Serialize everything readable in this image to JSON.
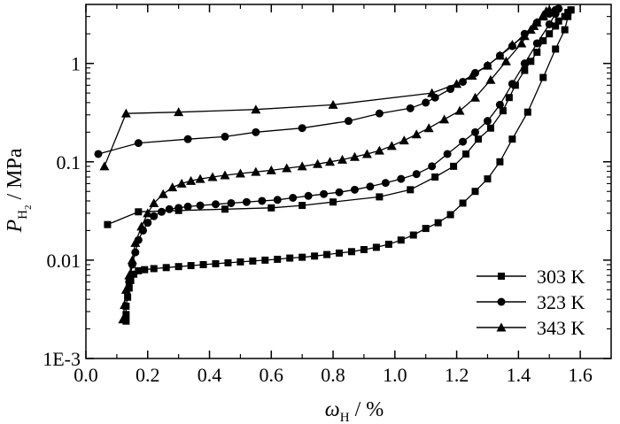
{
  "chart_data": {
    "type": "line",
    "ylabel": {
      "main": "P",
      "sub": "H",
      "subsub": "2",
      "rest": " / MPa"
    },
    "xlabel": {
      "main": "ω",
      "sub": "H",
      "rest": " / %"
    },
    "x_ticks": [
      "0.0",
      "0.2",
      "0.4",
      "0.6",
      "0.8",
      "1.0",
      "1.2",
      "1.4",
      "1.6"
    ],
    "y_ticks": [
      "1E-3",
      "0.01",
      "0.1",
      "1"
    ],
    "xlim": [
      0.0,
      1.7
    ],
    "ylim_log10": [
      -3,
      0.6
    ],
    "yscale": "log",
    "grid": false,
    "legend_position": "bottom-right",
    "series": [
      {
        "name": "303 K",
        "marker": "square",
        "x": [
          0.07,
          0.17,
          0.3,
          0.45,
          0.6,
          0.7,
          0.8,
          0.95,
          1.05,
          1.13,
          1.19,
          1.23,
          1.27,
          1.31,
          1.35,
          1.37,
          1.39,
          1.42,
          1.44,
          1.46,
          1.48,
          1.5,
          1.52,
          1.53,
          1.55,
          1.56,
          1.57,
          1.57,
          1.56,
          1.55,
          1.52,
          1.48,
          1.43,
          1.38,
          1.34,
          1.3,
          1.26,
          1.22,
          1.18,
          1.14,
          1.1,
          1.06,
          1.02,
          0.98,
          0.94,
          0.9,
          0.86,
          0.82,
          0.78,
          0.74,
          0.7,
          0.66,
          0.62,
          0.58,
          0.54,
          0.5,
          0.46,
          0.42,
          0.38,
          0.34,
          0.3,
          0.26,
          0.22,
          0.19,
          0.17,
          0.155,
          0.145,
          0.14,
          0.135,
          0.13,
          0.13,
          0.13
        ],
        "y": [
          0.023,
          0.031,
          0.032,
          0.033,
          0.034,
          0.036,
          0.039,
          0.044,
          0.052,
          0.07,
          0.09,
          0.12,
          0.17,
          0.22,
          0.33,
          0.45,
          0.6,
          0.85,
          1.05,
          1.3,
          1.7,
          2.0,
          2.4,
          2.7,
          3.0,
          3.3,
          3.5,
          3.5,
          3.0,
          2.2,
          1.4,
          0.72,
          0.32,
          0.17,
          0.1,
          0.067,
          0.05,
          0.038,
          0.029,
          0.024,
          0.021,
          0.018,
          0.016,
          0.0145,
          0.0135,
          0.0128,
          0.0122,
          0.0118,
          0.0114,
          0.011,
          0.0107,
          0.0105,
          0.0102,
          0.01,
          0.0098,
          0.0096,
          0.0094,
          0.0092,
          0.009,
          0.0088,
          0.0086,
          0.0084,
          0.0082,
          0.008,
          0.0078,
          0.0072,
          0.0062,
          0.0052,
          0.0042,
          0.0034,
          0.0028,
          0.0024
        ]
      },
      {
        "name": "323 K",
        "marker": "circle",
        "x": [
          0.04,
          0.17,
          0.33,
          0.45,
          0.55,
          0.7,
          0.85,
          0.95,
          1.05,
          1.1,
          1.13,
          1.18,
          1.22,
          1.26,
          1.3,
          1.34,
          1.38,
          1.42,
          1.46,
          1.5,
          1.52,
          1.53,
          1.53,
          1.52,
          1.5,
          1.46,
          1.42,
          1.38,
          1.34,
          1.3,
          1.26,
          1.22,
          1.17,
          1.12,
          1.07,
          1.02,
          0.97,
          0.92,
          0.87,
          0.82,
          0.77,
          0.72,
          0.67,
          0.62,
          0.57,
          0.52,
          0.47,
          0.42,
          0.37,
          0.33,
          0.3,
          0.27,
          0.245,
          0.22,
          0.2,
          0.185,
          0.17,
          0.16,
          0.15,
          0.14
        ],
        "y": [
          0.12,
          0.155,
          0.17,
          0.18,
          0.2,
          0.22,
          0.26,
          0.31,
          0.35,
          0.4,
          0.45,
          0.55,
          0.65,
          0.8,
          0.95,
          1.2,
          1.5,
          2.0,
          2.6,
          3.2,
          3.5,
          3.6,
          3.6,
          3.2,
          2.5,
          1.6,
          1.0,
          0.62,
          0.38,
          0.26,
          0.2,
          0.16,
          0.12,
          0.09,
          0.075,
          0.067,
          0.061,
          0.056,
          0.052,
          0.049,
          0.047,
          0.045,
          0.043,
          0.041,
          0.04,
          0.039,
          0.038,
          0.037,
          0.036,
          0.035,
          0.034,
          0.033,
          0.031,
          0.028,
          0.024,
          0.02,
          0.016,
          0.012,
          0.009,
          0.006
        ]
      },
      {
        "name": "343 K",
        "marker": "triangle",
        "x": [
          0.06,
          0.13,
          0.3,
          0.55,
          0.8,
          1.12,
          1.2,
          1.25,
          1.3,
          1.34,
          1.38,
          1.42,
          1.44,
          1.46,
          1.48,
          1.49,
          1.5,
          1.48,
          1.45,
          1.41,
          1.36,
          1.31,
          1.26,
          1.21,
          1.16,
          1.11,
          1.07,
          1.03,
          0.99,
          0.95,
          0.91,
          0.87,
          0.83,
          0.79,
          0.75,
          0.7,
          0.65,
          0.6,
          0.55,
          0.5,
          0.45,
          0.41,
          0.37,
          0.34,
          0.31,
          0.28,
          0.25,
          0.22,
          0.2,
          0.18,
          0.16,
          0.15,
          0.14,
          0.13,
          0.125,
          0.12
        ],
        "y": [
          0.09,
          0.31,
          0.32,
          0.34,
          0.38,
          0.5,
          0.62,
          0.75,
          0.95,
          1.2,
          1.55,
          1.9,
          2.2,
          2.6,
          3.0,
          3.4,
          3.5,
          3.1,
          2.4,
          1.6,
          1.05,
          0.68,
          0.45,
          0.33,
          0.27,
          0.22,
          0.19,
          0.165,
          0.145,
          0.13,
          0.12,
          0.112,
          0.105,
          0.1,
          0.095,
          0.09,
          0.086,
          0.082,
          0.079,
          0.076,
          0.073,
          0.07,
          0.067,
          0.064,
          0.06,
          0.055,
          0.047,
          0.038,
          0.03,
          0.022,
          0.015,
          0.01,
          0.007,
          0.005,
          0.0035,
          0.0025
        ]
      }
    ]
  }
}
